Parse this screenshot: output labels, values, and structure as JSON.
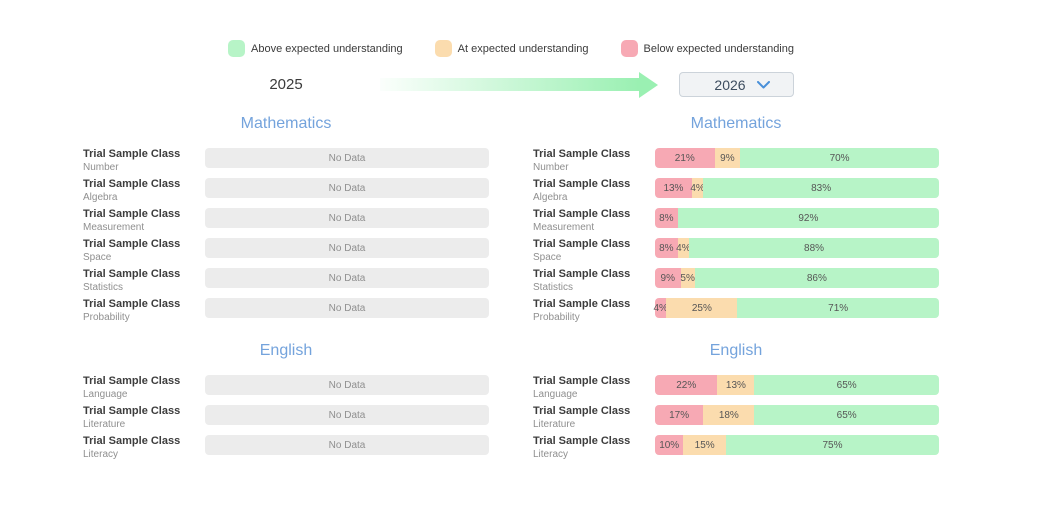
{
  "colors": {
    "above": "#b7f4c7",
    "at": "#fbdcae",
    "below": "#f7a9b4",
    "no_data_bg": "#ececec",
    "heading_blue": "#74a3dc",
    "arrow_green": "#9af0b2",
    "chevron_blue": "#4a90d9"
  },
  "legend": {
    "items": [
      {
        "kind": "above",
        "label": "Above expected understanding"
      },
      {
        "kind": "at",
        "label": "At expected understanding"
      },
      {
        "kind": "below",
        "label": "Below expected understanding"
      }
    ]
  },
  "comparison": {
    "from_year": "2025",
    "to_year": "2026"
  },
  "columns": [
    {
      "id": "left",
      "year": "2025",
      "sections": [
        {
          "title": "Mathematics",
          "rows": [
            {
              "name": "Trial Sample Class",
              "subject": "Number",
              "no_data": "No Data"
            },
            {
              "name": "Trial Sample Class",
              "subject": "Algebra",
              "no_data": "No Data"
            },
            {
              "name": "Trial Sample Class",
              "subject": "Measurement",
              "no_data": "No Data"
            },
            {
              "name": "Trial Sample Class",
              "subject": "Space",
              "no_data": "No Data"
            },
            {
              "name": "Trial Sample Class",
              "subject": "Statistics",
              "no_data": "No Data"
            },
            {
              "name": "Trial Sample Class",
              "subject": "Probability",
              "no_data": "No Data"
            }
          ]
        },
        {
          "title": "English",
          "rows": [
            {
              "name": "Trial Sample Class",
              "subject": "Language",
              "no_data": "No Data"
            },
            {
              "name": "Trial Sample Class",
              "subject": "Literature",
              "no_data": "No Data"
            },
            {
              "name": "Trial Sample Class",
              "subject": "Literacy",
              "no_data": "No Data"
            }
          ]
        }
      ]
    },
    {
      "id": "right",
      "year": "2026",
      "sections": [
        {
          "title": "Mathematics",
          "rows": [
            {
              "name": "Trial Sample Class",
              "subject": "Number",
              "segments": [
                {
                  "kind": "below",
                  "pct": 21,
                  "label": "21%"
                },
                {
                  "kind": "at",
                  "pct": 9,
                  "label": "9%"
                },
                {
                  "kind": "above",
                  "pct": 70,
                  "label": "70%"
                }
              ]
            },
            {
              "name": "Trial Sample Class",
              "subject": "Algebra",
              "segments": [
                {
                  "kind": "below",
                  "pct": 13,
                  "label": "13%"
                },
                {
                  "kind": "at",
                  "pct": 4,
                  "label": "4%"
                },
                {
                  "kind": "above",
                  "pct": 83,
                  "label": "83%"
                }
              ]
            },
            {
              "name": "Trial Sample Class",
              "subject": "Measurement",
              "segments": [
                {
                  "kind": "below",
                  "pct": 8,
                  "label": "8%"
                },
                {
                  "kind": "above",
                  "pct": 92,
                  "label": "92%"
                }
              ]
            },
            {
              "name": "Trial Sample Class",
              "subject": "Space",
              "segments": [
                {
                  "kind": "below",
                  "pct": 8,
                  "label": "8%"
                },
                {
                  "kind": "at",
                  "pct": 4,
                  "label": "4%"
                },
                {
                  "kind": "above",
                  "pct": 88,
                  "label": "88%"
                }
              ]
            },
            {
              "name": "Trial Sample Class",
              "subject": "Statistics",
              "segments": [
                {
                  "kind": "below",
                  "pct": 9,
                  "label": "9%"
                },
                {
                  "kind": "at",
                  "pct": 5,
                  "label": "5%"
                },
                {
                  "kind": "above",
                  "pct": 86,
                  "label": "86%"
                }
              ]
            },
            {
              "name": "Trial Sample Class",
              "subject": "Probability",
              "segments": [
                {
                  "kind": "below",
                  "pct": 4,
                  "label": "4%"
                },
                {
                  "kind": "at",
                  "pct": 25,
                  "label": "25%"
                },
                {
                  "kind": "above",
                  "pct": 71,
                  "label": "71%"
                }
              ]
            }
          ]
        },
        {
          "title": "English",
          "rows": [
            {
              "name": "Trial Sample Class",
              "subject": "Language",
              "segments": [
                {
                  "kind": "below",
                  "pct": 22,
                  "label": "22%"
                },
                {
                  "kind": "at",
                  "pct": 13,
                  "label": "13%"
                },
                {
                  "kind": "above",
                  "pct": 65,
                  "label": "65%"
                }
              ]
            },
            {
              "name": "Trial Sample Class",
              "subject": "Literature",
              "segments": [
                {
                  "kind": "below",
                  "pct": 17,
                  "label": "17%"
                },
                {
                  "kind": "at",
                  "pct": 18,
                  "label": "18%"
                },
                {
                  "kind": "above",
                  "pct": 65,
                  "label": "65%"
                }
              ]
            },
            {
              "name": "Trial Sample Class",
              "subject": "Literacy",
              "segments": [
                {
                  "kind": "below",
                  "pct": 10,
                  "label": "10%"
                },
                {
                  "kind": "at",
                  "pct": 15,
                  "label": "15%"
                },
                {
                  "kind": "above",
                  "pct": 75,
                  "label": "75%"
                }
              ]
            }
          ]
        }
      ]
    }
  ],
  "chart_data": [
    {
      "type": "bar",
      "stacked": true,
      "title": "Mathematics 2025",
      "categories": [
        "Number",
        "Algebra",
        "Measurement",
        "Space",
        "Statistics",
        "Probability"
      ],
      "series": [],
      "no_data": true,
      "no_data_label": "No Data",
      "xlim": [
        0,
        100
      ],
      "units": "%"
    },
    {
      "type": "bar",
      "stacked": true,
      "title": "English 2025",
      "categories": [
        "Language",
        "Literature",
        "Literacy"
      ],
      "series": [],
      "no_data": true,
      "no_data_label": "No Data",
      "xlim": [
        0,
        100
      ],
      "units": "%"
    },
    {
      "type": "bar",
      "stacked": true,
      "title": "Mathematics 2026",
      "categories": [
        "Number",
        "Algebra",
        "Measurement",
        "Space",
        "Statistics",
        "Probability"
      ],
      "series": [
        {
          "name": "Below expected understanding",
          "values": [
            21,
            13,
            8,
            8,
            9,
            4
          ]
        },
        {
          "name": "At expected understanding",
          "values": [
            9,
            4,
            0,
            4,
            5,
            25
          ]
        },
        {
          "name": "Above expected understanding",
          "values": [
            70,
            83,
            92,
            88,
            86,
            71
          ]
        }
      ],
      "xlim": [
        0,
        100
      ],
      "units": "%",
      "legend_position": "top"
    },
    {
      "type": "bar",
      "stacked": true,
      "title": "English 2026",
      "categories": [
        "Language",
        "Literature",
        "Literacy"
      ],
      "series": [
        {
          "name": "Below expected understanding",
          "values": [
            22,
            17,
            10
          ]
        },
        {
          "name": "At expected understanding",
          "values": [
            13,
            18,
            15
          ]
        },
        {
          "name": "Above expected understanding",
          "values": [
            65,
            65,
            75
          ]
        }
      ],
      "xlim": [
        0,
        100
      ],
      "units": "%",
      "legend_position": "top"
    }
  ]
}
